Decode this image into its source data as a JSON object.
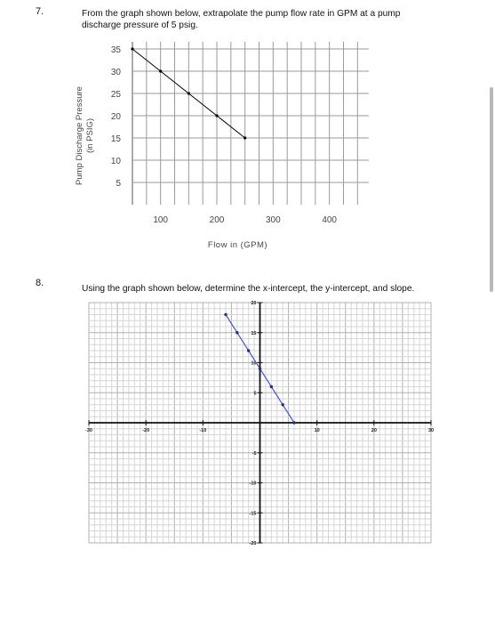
{
  "q7": {
    "number": "7.",
    "text": "From the graph shown below, extrapolate the pump flow rate in GPM at a pump discharge pressure of 5 psig."
  },
  "q8": {
    "number": "8.",
    "text": "Using the graph shown below, determine the x-intercept, the y-intercept, and slope."
  },
  "chart_data": [
    {
      "type": "line",
      "title": "",
      "xlabel": "Flow in (GPM)",
      "ylabel": "Pump Discharge Pressure (in PSIG)",
      "xlim": [
        20,
        470
      ],
      "ylim": [
        0,
        37
      ],
      "xticks": [
        100,
        200,
        300,
        400
      ],
      "yticks": [
        5,
        10,
        15,
        20,
        25,
        30,
        35
      ],
      "grid": true,
      "series": [
        {
          "x": [
            50,
            100,
            150,
            200,
            250
          ],
          "y": [
            35,
            30,
            25,
            20,
            15
          ]
        }
      ],
      "line_color": "#000000",
      "marker_color": "#000000"
    },
    {
      "type": "line",
      "title": "",
      "xlabel": "",
      "ylabel": "",
      "xlim": [
        -30,
        30
      ],
      "ylim": [
        -20,
        20
      ],
      "xticks": [
        -30,
        -20,
        -10,
        10,
        20,
        30
      ],
      "xtick_labels": [
        "-30",
        "-20",
        "-10",
        "10",
        "20",
        "30"
      ],
      "yticks": [
        -20,
        -15,
        -10,
        -5,
        5,
        10,
        15,
        20
      ],
      "ytick_labels": [
        "-20",
        "-15",
        "-10",
        "-5",
        "5",
        "10",
        "15",
        "20"
      ],
      "grid": true,
      "series": [
        {
          "x": [
            -6,
            -4,
            -2,
            0,
            2,
            4,
            6
          ],
          "y": [
            18,
            15,
            12,
            9,
            6,
            3,
            0
          ]
        }
      ],
      "line_color": "#4a5bd0",
      "marker_color": "#2a2f7a"
    }
  ]
}
